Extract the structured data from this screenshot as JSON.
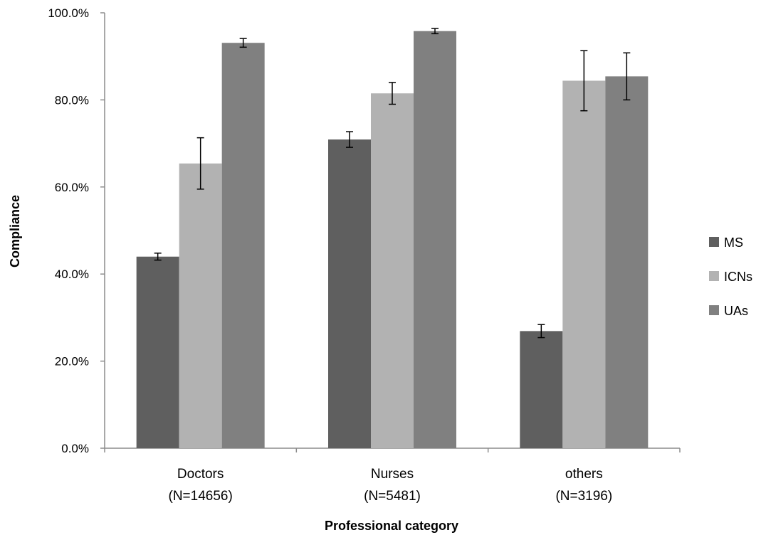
{
  "chart_data": {
    "type": "bar",
    "categories": [
      "Doctors",
      "Nurses",
      "others"
    ],
    "category_sublabels": [
      "(N=14656)",
      "(N=5481)",
      "(N=3196)"
    ],
    "series": [
      {
        "name": "MS",
        "color": "#5f5f5f",
        "values": [
          44.0,
          70.9,
          26.9
        ],
        "errors": [
          0.8,
          1.8,
          1.5
        ]
      },
      {
        "name": "ICNs",
        "color": "#b2b2b2",
        "values": [
          65.4,
          81.5,
          84.4
        ],
        "errors": [
          5.9,
          2.5,
          6.9
        ]
      },
      {
        "name": "UAs",
        "color": "#808080",
        "values": [
          93.1,
          95.8,
          85.4
        ],
        "errors": [
          1.0,
          0.6,
          5.4
        ]
      }
    ],
    "xlabel": "Professional category",
    "ylabel": "Compliance",
    "ylim": [
      0,
      100
    ],
    "yticks": [
      0,
      20,
      40,
      60,
      80,
      100
    ],
    "ytick_labels": [
      "0.0%",
      "20.0%",
      "40.0%",
      "60.0%",
      "80.0%",
      "100.0%"
    ],
    "grid": false,
    "legend_position": "right"
  }
}
